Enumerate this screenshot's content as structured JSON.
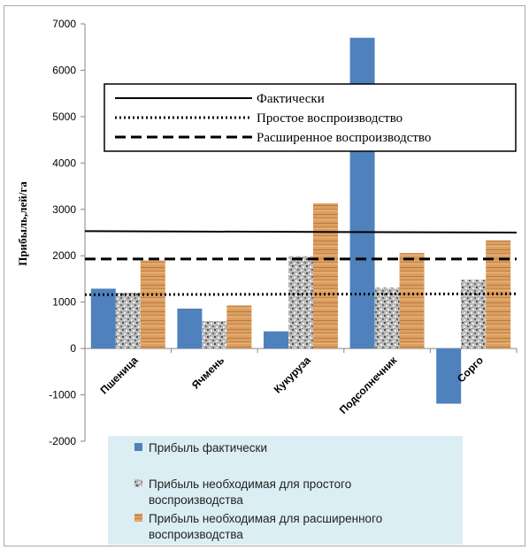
{
  "chart_data": {
    "type": "bar",
    "title": "",
    "xlabel": "",
    "ylabel": "Прибыль,лей/га",
    "ylim": [
      -2000,
      7000
    ],
    "yticks": [
      -2000,
      -1000,
      0,
      1000,
      2000,
      3000,
      4000,
      5000,
      6000,
      7000
    ],
    "grid": false,
    "categories": [
      "Пшеница",
      "Ячмень",
      "Кукуруза",
      "Подсолнечник",
      "Сорго"
    ],
    "series": [
      {
        "name": "Прибыль фактически",
        "values": [
          1290,
          860,
          370,
          6700,
          -1190
        ],
        "color": "#4f81bd",
        "pattern": "solid"
      },
      {
        "name": "Прибыль необходимая для простого воспроизводства",
        "values": [
          1200,
          590,
          1990,
          1310,
          1480
        ],
        "color": "#a6a6a6",
        "pattern": "granite"
      },
      {
        "name": "Прибыль необходимая для расширенного воспроизводства",
        "values": [
          1900,
          930,
          3130,
          2060,
          2330
        ],
        "color": "#d9955a",
        "pattern": "wood"
      }
    ],
    "reference_lines": [
      {
        "name": "Фактически",
        "style": "solid",
        "y_start": 2530,
        "y_end": 2500
      },
      {
        "name": "Простое воспроизводство",
        "style": "dotted",
        "y_start": 1160,
        "y_end": 1180
      },
      {
        "name": "Расширенное воспроизводство",
        "style": "dashed",
        "y_start": 1930,
        "y_end": 1930
      }
    ],
    "legend_lines_position": "top",
    "legend_bars_position": "bottom"
  }
}
